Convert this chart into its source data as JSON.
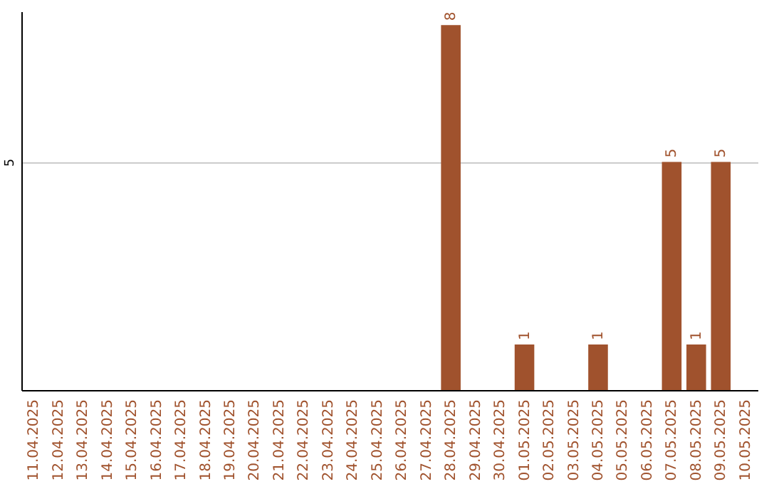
{
  "chart_data": {
    "type": "bar",
    "categories": [
      "11.04.2025",
      "12.04.2025",
      "13.04.2025",
      "14.04.2025",
      "15.04.2025",
      "16.04.2025",
      "17.04.2025",
      "18.04.2025",
      "19.04.2025",
      "20.04.2025",
      "21.04.2025",
      "22.04.2025",
      "23.04.2025",
      "24.04.2025",
      "25.04.2025",
      "26.04.2025",
      "27.04.2025",
      "28.04.2025",
      "29.04.2025",
      "30.04.2025",
      "01.05.2025",
      "02.05.2025",
      "03.05.2025",
      "04.05.2025",
      "05.05.2025",
      "06.05.2025",
      "07.05.2025",
      "08.05.2025",
      "09.05.2025",
      "10.05.2025"
    ],
    "values": [
      null,
      null,
      null,
      null,
      null,
      null,
      null,
      null,
      null,
      null,
      null,
      null,
      null,
      null,
      null,
      null,
      null,
      8,
      null,
      null,
      1,
      null,
      null,
      1,
      null,
      null,
      5,
      1,
      5,
      null
    ],
    "color": "#a0522d",
    "ylim": [
      0,
      8.3
    ],
    "yticks": [
      5
    ],
    "grid": "y",
    "data_labels": true
  }
}
